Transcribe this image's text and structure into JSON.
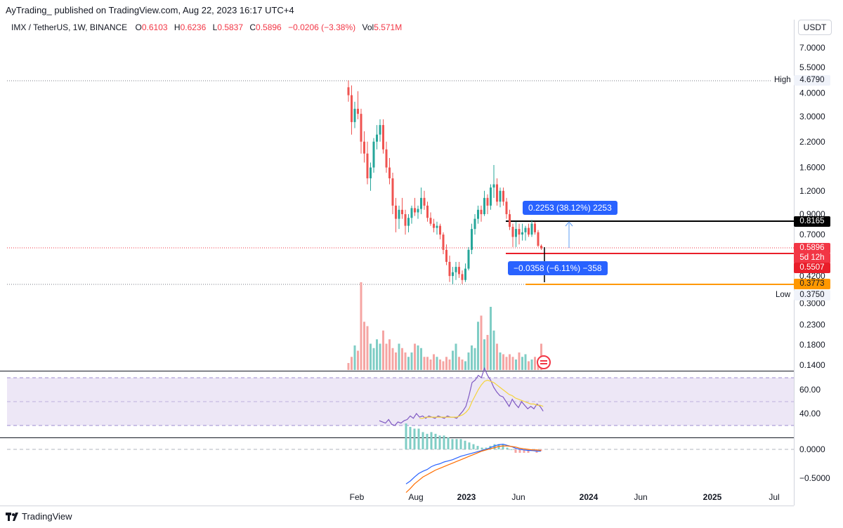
{
  "header": {
    "published": "AyTrading_ published on TradingView.com, Aug 22, 2023 16:17 UTC+4"
  },
  "legend": {
    "symbol": "IMX / TetherUS, 1W, BINANCE",
    "open_label": "O",
    "open": "0.6103",
    "high_label": "H",
    "high": "0.6236",
    "low_label": "L",
    "low": "0.5837",
    "close_label": "C",
    "close": "0.5896",
    "change": "−0.0206 (−3.38%)",
    "vol_label": "Vol",
    "vol": "5.571M"
  },
  "currency_button": "USDT",
  "price_axis": {
    "ticks": [
      "7.0000",
      "5.5000",
      "4.0000",
      "3.0000",
      "2.2000",
      "1.6000",
      "1.2000",
      "0.9000",
      "0.7000",
      "0.4200",
      "0.3000",
      "0.2300",
      "0.1800",
      "0.1400"
    ],
    "tick_values": [
      7.0,
      5.5,
      4.0,
      3.0,
      2.2,
      1.6,
      1.2,
      0.9,
      0.7,
      0.42,
      0.3,
      0.23,
      0.18,
      0.14
    ]
  },
  "labels": {
    "high_text": "High",
    "high_value": "4.6790",
    "low_text": "Low",
    "low_value": "0.3750",
    "level_top": "0.8165",
    "current_price": "0.5896",
    "countdown": "5d 12h",
    "level_mid": "0.5507",
    "level_bottom": "0.3773"
  },
  "measurements": {
    "up": "0.2253 (38.12%) 2253",
    "down": "−0.0358 (−6.11%) −358"
  },
  "rsi_axis": [
    "60.00",
    "40.00"
  ],
  "macd_axis": [
    "0.0000",
    "−0.5000"
  ],
  "time_axis": [
    "Feb",
    "Aug",
    "2023",
    "Jun",
    "2024",
    "Jun",
    "2025",
    "Jul"
  ],
  "colors": {
    "up": "#26a69a",
    "down": "#ef5350",
    "level_top": "#000000",
    "level_mid": "#e91e2a",
    "level_bottom": "#ff9800",
    "rsi_line": "#7e57c2",
    "rsi_ma": "#f5d33a",
    "macd_line": "#2962ff",
    "signal_line": "#ff6d00",
    "measure": "#2962ff"
  },
  "footer": {
    "brand": "TradingView"
  },
  "chart_data": {
    "type": "candlestick",
    "x_unit": "weekly candles",
    "y_scale": "log",
    "ylim": [
      0.12,
      8.0
    ],
    "ohlc": [
      [
        4.3,
        4.68,
        3.6,
        3.9
      ],
      [
        3.9,
        4.4,
        2.4,
        2.8
      ],
      [
        2.8,
        3.6,
        2.6,
        3.3
      ],
      [
        3.3,
        4.1,
        2.9,
        3.1
      ],
      [
        3.1,
        3.3,
        1.9,
        2.2
      ],
      [
        2.2,
        2.5,
        1.7,
        1.9
      ],
      [
        1.9,
        2.2,
        1.3,
        1.4
      ],
      [
        1.4,
        1.7,
        1.2,
        1.6
      ],
      [
        1.6,
        2.3,
        1.5,
        2.2
      ],
      [
        2.2,
        2.7,
        2.0,
        2.4
      ],
      [
        2.4,
        2.9,
        2.2,
        2.7
      ],
      [
        2.7,
        2.9,
        1.9,
        2.0
      ],
      [
        2.0,
        2.2,
        1.5,
        1.6
      ],
      [
        1.6,
        1.8,
        1.3,
        1.4
      ],
      [
        1.4,
        1.5,
        0.9,
        1.0
      ],
      [
        1.0,
        1.1,
        0.72,
        0.85
      ],
      [
        0.85,
        1.0,
        0.75,
        0.95
      ],
      [
        0.95,
        1.1,
        0.85,
        0.9
      ],
      [
        0.9,
        0.95,
        0.7,
        0.78
      ],
      [
        0.78,
        0.9,
        0.72,
        0.86
      ],
      [
        0.86,
        1.0,
        0.8,
        0.97
      ],
      [
        0.97,
        1.1,
        0.88,
        0.92
      ],
      [
        0.92,
        1.0,
        0.85,
        0.96
      ],
      [
        0.96,
        1.25,
        0.9,
        1.1
      ],
      [
        1.1,
        1.2,
        0.95,
        1.0
      ],
      [
        1.0,
        1.05,
        0.82,
        0.86
      ],
      [
        0.86,
        0.92,
        0.78,
        0.8
      ],
      [
        0.8,
        0.85,
        0.72,
        0.76
      ],
      [
        0.76,
        0.82,
        0.7,
        0.78
      ],
      [
        0.78,
        0.8,
        0.66,
        0.7
      ],
      [
        0.7,
        0.72,
        0.55,
        0.58
      ],
      [
        0.58,
        0.62,
        0.48,
        0.5
      ],
      [
        0.5,
        0.54,
        0.39,
        0.42
      ],
      [
        0.42,
        0.47,
        0.38,
        0.44
      ],
      [
        0.44,
        0.5,
        0.4,
        0.47
      ],
      [
        0.47,
        0.5,
        0.41,
        0.43
      ],
      [
        0.43,
        0.45,
        0.38,
        0.4
      ],
      [
        0.4,
        0.49,
        0.39,
        0.46
      ],
      [
        0.46,
        0.6,
        0.45,
        0.58
      ],
      [
        0.58,
        0.8,
        0.55,
        0.75
      ],
      [
        0.75,
        0.9,
        0.7,
        0.85
      ],
      [
        0.85,
        1.0,
        0.8,
        0.95
      ],
      [
        0.95,
        1.0,
        0.82,
        0.9
      ],
      [
        0.9,
        1.2,
        0.88,
        1.1
      ],
      [
        1.1,
        1.15,
        0.9,
        1.0
      ],
      [
        1.0,
        1.3,
        0.95,
        1.25
      ],
      [
        1.25,
        1.65,
        1.1,
        1.3
      ],
      [
        1.3,
        1.4,
        1.0,
        1.05
      ],
      [
        1.05,
        1.25,
        0.98,
        1.2
      ],
      [
        1.2,
        1.25,
        1.0,
        1.05
      ],
      [
        1.05,
        1.1,
        0.85,
        0.9
      ],
      [
        0.9,
        0.95,
        0.74,
        0.77
      ],
      [
        0.77,
        0.8,
        0.6,
        0.68
      ],
      [
        0.68,
        0.82,
        0.6,
        0.75
      ],
      [
        0.75,
        0.8,
        0.62,
        0.7
      ],
      [
        0.7,
        0.8,
        0.65,
        0.72
      ],
      [
        0.72,
        0.78,
        0.65,
        0.76
      ],
      [
        0.76,
        0.8,
        0.68,
        0.7
      ],
      [
        0.7,
        0.84,
        0.68,
        0.8
      ],
      [
        0.8,
        0.82,
        0.7,
        0.72
      ],
      [
        0.72,
        0.74,
        0.6,
        0.61
      ],
      [
        0.61,
        0.62,
        0.58,
        0.59
      ]
    ],
    "volume_relative": [
      0.08,
      0.15,
      0.28,
      0.22,
      1.0,
      0.55,
      0.5,
      0.3,
      0.25,
      0.35,
      0.3,
      0.45,
      0.3,
      0.35,
      0.25,
      0.2,
      0.3,
      0.25,
      0.2,
      0.15,
      0.2,
      0.3,
      0.28,
      0.25,
      0.15,
      0.15,
      0.12,
      0.18,
      0.15,
      0.12,
      0.1,
      0.15,
      0.12,
      0.22,
      0.3,
      0.15,
      0.12,
      0.1,
      0.2,
      0.28,
      0.25,
      0.55,
      0.62,
      0.35,
      0.4,
      0.72,
      0.45,
      0.3,
      0.2,
      0.18,
      0.15,
      0.18,
      0.15,
      0.12,
      0.2,
      0.15,
      0.18,
      0.1,
      0.12,
      0.15,
      0.08,
      0.3
    ],
    "rsi": [
      34,
      33,
      32,
      35,
      31,
      30,
      33,
      32,
      34,
      35,
      38,
      36,
      40,
      37,
      38,
      36,
      38,
      37,
      36,
      38,
      37,
      36,
      38,
      37,
      37,
      36,
      39,
      42,
      46,
      55,
      66,
      68,
      72,
      70,
      78,
      72,
      68,
      62,
      58,
      55,
      54,
      50,
      46,
      52,
      48,
      45,
      50,
      47,
      44,
      46,
      44,
      48,
      46,
      42
    ],
    "rsi_ma": [
      null,
      null,
      null,
      null,
      null,
      null,
      null,
      null,
      null,
      null,
      null,
      null,
      null,
      36,
      36,
      37,
      37,
      37,
      37,
      37,
      37,
      37,
      37,
      37,
      37,
      37,
      38,
      39,
      41,
      44,
      50,
      55,
      60,
      64,
      67,
      68,
      67,
      66,
      64,
      62,
      60,
      58,
      56,
      55,
      53,
      52,
      51,
      50,
      49,
      48,
      48,
      47,
      47,
      46
    ],
    "rsi_levels": [
      70,
      50,
      30
    ],
    "macd": [
      -0.6,
      -0.55,
      -0.48,
      -0.42,
      -0.38,
      -0.35,
      -0.3,
      -0.27,
      -0.25,
      -0.22,
      -0.2,
      -0.18,
      -0.15,
      -0.12,
      -0.1,
      -0.08,
      -0.06,
      -0.04,
      -0.02,
      0.0,
      0.03,
      0.06,
      0.08,
      0.09,
      0.07,
      0.05,
      0.02,
      0.0,
      -0.01,
      -0.02,
      -0.02,
      -0.03,
      -0.03
    ],
    "signal": [
      -0.75,
      -0.68,
      -0.6,
      -0.54,
      -0.48,
      -0.44,
      -0.4,
      -0.36,
      -0.33,
      -0.3,
      -0.27,
      -0.24,
      -0.21,
      -0.18,
      -0.15,
      -0.12,
      -0.09,
      -0.06,
      -0.03,
      -0.01,
      0.01,
      0.03,
      0.05,
      0.06,
      0.06,
      0.05,
      0.04,
      0.02,
      0.01,
      0.0,
      -0.01,
      -0.01,
      -0.02
    ]
  }
}
